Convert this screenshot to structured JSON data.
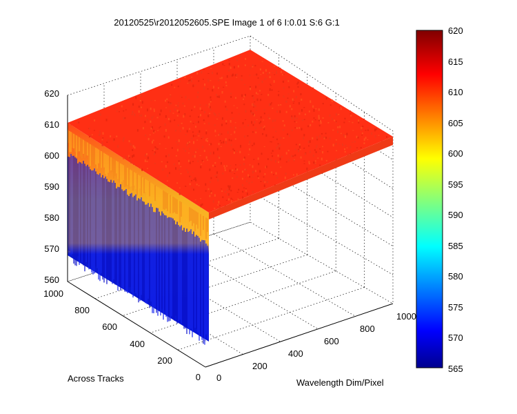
{
  "figure": {
    "title": "20120525\\r2012052605.SPE  Image 1 of 6  I:0.01  S:6  G:1"
  },
  "chart_data": {
    "type": "surface3d",
    "title": "20120525\\r2012052605.SPE  Image 1 of 6  I:0.01  S:6  G:1",
    "xlabel": "Wavelength Dim/Pixel",
    "ylabel": "Across Tracks",
    "zlabel": "",
    "xlim": [
      0,
      1000
    ],
    "ylim": [
      0,
      1000
    ],
    "zlim": [
      560,
      620
    ],
    "x_ticks": [
      "0",
      "200",
      "400",
      "600",
      "800",
      "1000"
    ],
    "y_ticks": [
      "0",
      "200",
      "400",
      "600",
      "800",
      "1000"
    ],
    "z_ticks": [
      "560",
      "570",
      "580",
      "590",
      "600",
      "610",
      "620"
    ],
    "grid": true,
    "colormap": "jet",
    "colorbar": {
      "ticks": [
        "565",
        "570",
        "575",
        "580",
        "585",
        "590",
        "595",
        "600",
        "605",
        "610",
        "615",
        "620"
      ],
      "range": [
        565,
        620
      ]
    },
    "surface_summary": {
      "plateau_value_approx": 611,
      "plateau_noise_range": [
        606,
        616
      ],
      "edge_falloff_min_approx": 562,
      "edge_falloff_max_approx": 568
    },
    "colors": {
      "plateau": "#ff2f14",
      "edge_high": "#f2a21c",
      "edge_low": "#0716d9",
      "background": "#ffffff"
    }
  }
}
